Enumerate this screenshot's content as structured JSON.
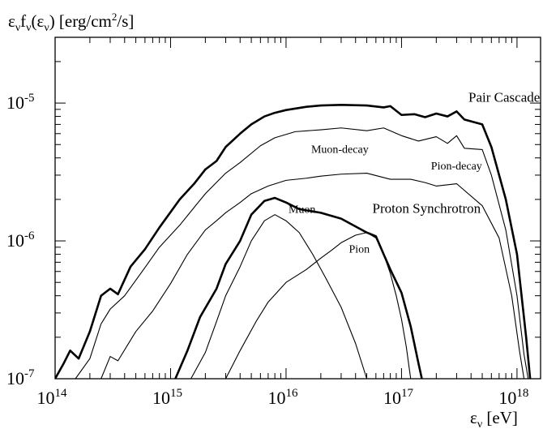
{
  "chart_data": {
    "type": "line",
    "ylabel": "ε",
    "xlabel": "ε",
    "xscale": "log",
    "yscale": "log",
    "xlim": [
      100000000000000.0,
      1.6e+18
    ],
    "ylim": [
      1e-07,
      3e-05
    ],
    "x_ticks": [
      {
        "value": 100000000000000.0,
        "label": "10",
        "exp": "14"
      },
      {
        "value": 1000000000000000.0,
        "label": "10",
        "exp": "15"
      },
      {
        "value": 1e+16,
        "label": "10",
        "exp": "16"
      },
      {
        "value": 1e+17,
        "label": "10",
        "exp": "17"
      },
      {
        "value": 1e+18,
        "label": "10",
        "exp": "18"
      }
    ],
    "y_ticks": [
      {
        "value": 1e-07,
        "label": "10",
        "exp": "-7"
      },
      {
        "value": 1e-06,
        "label": "10",
        "exp": "-6"
      },
      {
        "value": 1e-05,
        "label": "10",
        "exp": "-5"
      }
    ],
    "series": [
      {
        "name": "Pair Cascade",
        "style": "thick",
        "points": [
          [
            100000000000000.0,
            1e-07
          ],
          [
            118000000000000.0,
            1.28e-07
          ],
          [
            135000000000000.0,
            1.6e-07
          ],
          [
            160000000000000.0,
            1.4e-07
          ],
          [
            200000000000000.0,
            2.2e-07
          ],
          [
            250000000000000.0,
            4e-07
          ],
          [
            300000000000000.0,
            4.5e-07
          ],
          [
            350000000000000.0,
            4.1e-07
          ],
          [
            450000000000000.0,
            6.5e-07
          ],
          [
            600000000000000.0,
            8.7e-07
          ],
          [
            800000000000000.0,
            1.25e-06
          ],
          [
            1200000000000000.0,
            2e-06
          ],
          [
            1600000000000000.0,
            2.6e-06
          ],
          [
            2000000000000000.0,
            3.3e-06
          ],
          [
            2500000000000000.0,
            3.8e-06
          ],
          [
            3000000000000000.0,
            4.8e-06
          ],
          [
            4000000000000000.0,
            6e-06
          ],
          [
            5000000000000000.0,
            7e-06
          ],
          [
            6500000000000000.0,
            8e-06
          ],
          [
            8000000000000000.0,
            8.5e-06
          ],
          [
            1e+16,
            8.9e-06
          ],
          [
            1.5e+16,
            9.4e-06
          ],
          [
            2e+16,
            9.6e-06
          ],
          [
            3e+16,
            9.7e-06
          ],
          [
            5e+16,
            9.6e-06
          ],
          [
            7e+16,
            9.3e-06
          ],
          [
            8e+16,
            9.5e-06
          ],
          [
            1e+17,
            8.2e-06
          ],
          [
            1.3e+17,
            8.3e-06
          ],
          [
            1.6e+17,
            7.9e-06
          ],
          [
            2e+17,
            8.4e-06
          ],
          [
            2.5e+17,
            8e-06
          ],
          [
            3e+17,
            8.7e-06
          ],
          [
            3.5e+17,
            7.6e-06
          ],
          [
            5e+17,
            7e-06
          ],
          [
            6e+17,
            4.8e-06
          ],
          [
            8e+17,
            2e-06
          ],
          [
            1e+18,
            8e-07
          ],
          [
            1.2e+18,
            2e-07
          ],
          [
            1.3e+18,
            1e-07
          ]
        ]
      },
      {
        "name": "Muon-decay",
        "style": "thin",
        "points": [
          [
            120000000000000.0,
            1e-07
          ],
          [
            150000000000000.0,
            1e-07
          ],
          [
            200000000000000.0,
            1.4e-07
          ],
          [
            250000000000000.0,
            2.5e-07
          ],
          [
            300000000000000.0,
            3.2e-07
          ],
          [
            400000000000000.0,
            4e-07
          ],
          [
            600000000000000.0,
            6.4e-07
          ],
          [
            800000000000000.0,
            9e-07
          ],
          [
            1200000000000000.0,
            1.3e-06
          ],
          [
            1600000000000000.0,
            1.75e-06
          ],
          [
            2000000000000000.0,
            2.2e-06
          ],
          [
            3000000000000000.0,
            3.1e-06
          ],
          [
            4000000000000000.0,
            3.7e-06
          ],
          [
            6000000000000000.0,
            4.9e-06
          ],
          [
            8000000000000000.0,
            5.6e-06
          ],
          [
            1.2e+16,
            6.2e-06
          ],
          [
            2e+16,
            6.4e-06
          ],
          [
            3e+16,
            6.6e-06
          ],
          [
            5e+16,
            6.3e-06
          ],
          [
            7e+16,
            6.6e-06
          ],
          [
            1e+17,
            5.8e-06
          ],
          [
            1.4e+17,
            5.3e-06
          ],
          [
            2e+17,
            5.7e-06
          ],
          [
            2.5e+17,
            5.1e-06
          ],
          [
            3e+17,
            5.8e-06
          ],
          [
            3.5e+17,
            4.7e-06
          ],
          [
            5e+17,
            4.6e-06
          ],
          [
            6e+17,
            3e-06
          ],
          [
            8e+17,
            1.2e-06
          ],
          [
            1e+18,
            4e-07
          ],
          [
            1.15e+18,
            1.5e-07
          ],
          [
            1.25e+18,
            1e-07
          ]
        ]
      },
      {
        "name": "Pion-decay",
        "style": "thin",
        "points": [
          [
            250000000000000.0,
            1e-07
          ],
          [
            300000000000000.0,
            1.45e-07
          ],
          [
            350000000000000.0,
            1.35e-07
          ],
          [
            500000000000000.0,
            2.2e-07
          ],
          [
            700000000000000.0,
            3.1e-07
          ],
          [
            1000000000000000.0,
            4.9e-07
          ],
          [
            1400000000000000.0,
            8e-07
          ],
          [
            2000000000000000.0,
            1.2e-06
          ],
          [
            2500000000000000.0,
            1.4e-06
          ],
          [
            3000000000000000.0,
            1.6e-06
          ],
          [
            4000000000000000.0,
            1.9e-06
          ],
          [
            5000000000000000.0,
            2.2e-06
          ],
          [
            7000000000000000.0,
            2.5e-06
          ],
          [
            1e+16,
            2.75e-06
          ],
          [
            1.5e+16,
            2.85e-06
          ],
          [
            2e+16,
            2.95e-06
          ],
          [
            3e+16,
            3.05e-06
          ],
          [
            5e+16,
            3.1e-06
          ],
          [
            8e+16,
            2.8e-06
          ],
          [
            1.2e+17,
            2.8e-06
          ],
          [
            1.6e+17,
            2.65e-06
          ],
          [
            2e+17,
            2.5e-06
          ],
          [
            3e+17,
            2.6e-06
          ],
          [
            5e+17,
            1.8e-06
          ],
          [
            7e+17,
            1.05e-06
          ],
          [
            9e+17,
            4e-07
          ],
          [
            1.05e+18,
            1.6e-07
          ],
          [
            1.15e+18,
            1e-07
          ]
        ]
      },
      {
        "name": "Proton Synchrotron",
        "style": "thick",
        "points": [
          [
            1100000000000000.0,
            1e-07
          ],
          [
            1400000000000000.0,
            1.6e-07
          ],
          [
            1800000000000000.0,
            2.8e-07
          ],
          [
            2500000000000000.0,
            4.5e-07
          ],
          [
            3000000000000000.0,
            6.8e-07
          ],
          [
            4000000000000000.0,
            1e-06
          ],
          [
            5000000000000000.0,
            1.55e-06
          ],
          [
            6500000000000000.0,
            1.95e-06
          ],
          [
            8000000000000000.0,
            2.05e-06
          ],
          [
            1e+16,
            1.9e-06
          ],
          [
            1.3e+16,
            1.7e-06
          ],
          [
            2e+16,
            1.6e-06
          ],
          [
            3e+16,
            1.45e-06
          ],
          [
            5e+16,
            1.15e-06
          ],
          [
            6e+16,
            1.08e-06
          ],
          [
            7e+16,
            8e-07
          ],
          [
            8e+16,
            6.2e-07
          ],
          [
            1e+17,
            4.2e-07
          ],
          [
            1.2e+17,
            2.4e-07
          ],
          [
            1.4e+17,
            1.3e-07
          ],
          [
            1.5e+17,
            1e-07
          ]
        ]
      },
      {
        "name": "Muon",
        "style": "thin",
        "points": [
          [
            1500000000000000.0,
            1e-07
          ],
          [
            2000000000000000.0,
            1.55e-07
          ],
          [
            2500000000000000.0,
            2.6e-07
          ],
          [
            3000000000000000.0,
            4e-07
          ],
          [
            4000000000000000.0,
            6.5e-07
          ],
          [
            5000000000000000.0,
            1e-06
          ],
          [
            6500000000000000.0,
            1.4e-06
          ],
          [
            8000000000000000.0,
            1.55e-06
          ],
          [
            1e+16,
            1.4e-06
          ],
          [
            1.3e+16,
            1.15e-06
          ],
          [
            1.7e+16,
            8e-07
          ],
          [
            2.2e+16,
            5.4e-07
          ],
          [
            3e+16,
            3.3e-07
          ],
          [
            4e+16,
            1.8e-07
          ],
          [
            5e+16,
            1e-07
          ]
        ]
      },
      {
        "name": "Pion",
        "style": "thin",
        "points": [
          [
            3000000000000000.0,
            1e-07
          ],
          [
            4000000000000000.0,
            1.6e-07
          ],
          [
            5500000000000000.0,
            2.6e-07
          ],
          [
            7000000000000000.0,
            3.6e-07
          ],
          [
            1e+16,
            5e-07
          ],
          [
            1.5e+16,
            6.2e-07
          ],
          [
            2e+16,
            7.5e-07
          ],
          [
            2.5e+16,
            8.6e-07
          ],
          [
            3e+16,
            9.7e-07
          ],
          [
            4e+16,
            1.1e-06
          ],
          [
            5e+16,
            1.15e-06
          ],
          [
            6e+16,
            1.05e-06
          ],
          [
            7e+16,
            8e-07
          ],
          [
            8e+16,
            5.8e-07
          ],
          [
            9e+16,
            4e-07
          ],
          [
            1e+17,
            2.7e-07
          ],
          [
            1.1e+17,
            1.7e-07
          ],
          [
            1.2e+17,
            1e-07
          ]
        ]
      }
    ],
    "annotations": [
      {
        "text": "Pair Cascade",
        "x": 3.8e+17,
        "y": 1.02e-05,
        "size": "large"
      },
      {
        "text": "Muon-decay",
        "x": 1.65e+16,
        "y": 4.35e-06,
        "size": "small"
      },
      {
        "text": "Pion-decay",
        "x": 1.8e+17,
        "y": 3.3e-06,
        "size": "small"
      },
      {
        "text": "Proton Synchrotron",
        "x": 5.6e+16,
        "y": 1.6e-06,
        "size": "large"
      },
      {
        "text": "Muon",
        "x": 1.05e+16,
        "y": 1.6e-06,
        "size": "small"
      },
      {
        "text": "Pion",
        "x": 3.5e+16,
        "y": 8.2e-07,
        "size": "small"
      }
    ]
  }
}
